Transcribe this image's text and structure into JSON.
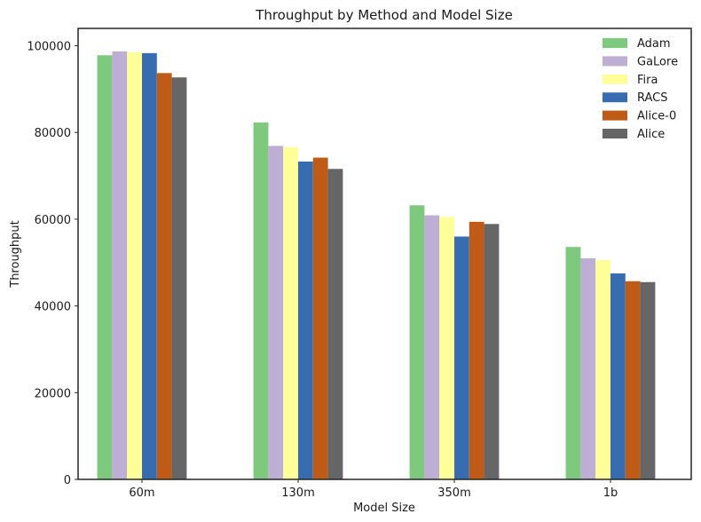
{
  "chart_data": {
    "type": "bar",
    "title": "Throughput by Method and Model Size",
    "xlabel": "Model Size",
    "ylabel": "Throughput",
    "categories": [
      "60m",
      "130m",
      "350m",
      "1b"
    ],
    "ylim": [
      0,
      104000
    ],
    "yticks": [
      0,
      20000,
      40000,
      60000,
      80000,
      100000
    ],
    "grid": false,
    "legend_position": "top-right",
    "series": [
      {
        "name": "Adam",
        "color": "#7fc97f",
        "values": [
          97800,
          82300,
          63200,
          53600
        ]
      },
      {
        "name": "GaLore",
        "color": "#beaed4",
        "values": [
          98700,
          76900,
          60900,
          51000
        ]
      },
      {
        "name": "Fira",
        "color": "#ffff99",
        "values": [
          98500,
          76600,
          60500,
          50600
        ]
      },
      {
        "name": "RACS",
        "color": "#386cb0",
        "values": [
          98300,
          73300,
          56000,
          47500
        ]
      },
      {
        "name": "Alice-0",
        "color": "#bf5b17",
        "values": [
          93700,
          74200,
          59400,
          45700
        ]
      },
      {
        "name": "Alice",
        "color": "#666666",
        "values": [
          92700,
          71600,
          58900,
          45500
        ]
      }
    ]
  }
}
